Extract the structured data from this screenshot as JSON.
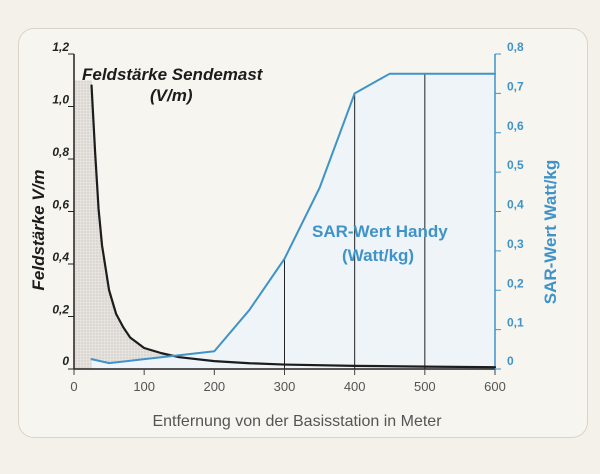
{
  "chart_data": {
    "type": "line",
    "xlabel": "Entfernung von der Basisstation in Meter",
    "ylabel_left": "Feldstärke V/m",
    "ylabel_right": "SAR-Wert Watt/kg",
    "x_ticks": [
      "0",
      "100",
      "200",
      "300",
      "400",
      "500",
      "600"
    ],
    "y_left_ticks": [
      "0",
      "0,2",
      "0,4",
      "0,6",
      "0,8",
      "1,0",
      "1,2"
    ],
    "y_right_ticks": [
      "0",
      "0,1",
      "0,2",
      "0,3",
      "0,4",
      "0,5",
      "0,6",
      "0,7",
      "0,8"
    ],
    "xlim": [
      0,
      600
    ],
    "ylim_left": [
      0,
      1.2
    ],
    "ylim_right": [
      0,
      0.8
    ],
    "series": [
      {
        "name": "Feldstärke Sendemast (V/m)",
        "label_line1": "Feldstärke Sendemast",
        "label_line2": "(V/m)",
        "axis": "left",
        "color": "#1c1c1c",
        "x": [
          25,
          30,
          35,
          40,
          50,
          60,
          70,
          80,
          100,
          125,
          150,
          200,
          250,
          300,
          400,
          500,
          600
        ],
        "y": [
          1.08,
          0.83,
          0.61,
          0.47,
          0.3,
          0.21,
          0.16,
          0.12,
          0.08,
          0.06,
          0.045,
          0.03,
          0.022,
          0.017,
          0.012,
          0.009,
          0.007
        ]
      },
      {
        "name": "SAR-Wert Handy (Watt/kg)",
        "label_line1": "SAR-Wert Handy",
        "label_line2": "(Watt/kg)",
        "axis": "right",
        "color": "#3f93c8",
        "x": [
          25,
          50,
          100,
          150,
          200,
          250,
          300,
          350,
          400,
          450,
          500,
          600
        ],
        "y": [
          0.025,
          0.015,
          0.025,
          0.035,
          0.045,
          0.15,
          0.28,
          0.46,
          0.7,
          0.75,
          0.75,
          0.75
        ]
      }
    ],
    "vertical_gridlines_x": [
      300,
      400,
      500
    ],
    "near_zone_shading_x": [
      0,
      200
    ]
  }
}
